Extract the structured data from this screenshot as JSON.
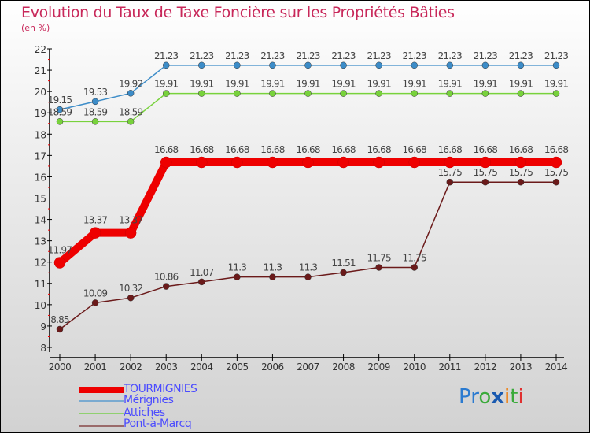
{
  "chart_data": {
    "type": "line",
    "title": "Evolution du Taux de Taxe Foncière sur les Propriétés Bâties",
    "ylabel": "(en %)",
    "x": [
      2000,
      2001,
      2002,
      2003,
      2004,
      2005,
      2006,
      2007,
      2008,
      2009,
      2010,
      2011,
      2012,
      2013,
      2014
    ],
    "ylim": [
      8,
      22
    ],
    "yticks": [
      8,
      9,
      10,
      11,
      12,
      13,
      14,
      15,
      16,
      17,
      18,
      19,
      20,
      21,
      22
    ],
    "series": [
      {
        "name": "Mérignies",
        "color": "#3c8cc8",
        "values": [
          19.15,
          19.53,
          19.92,
          21.23,
          21.23,
          21.23,
          21.23,
          21.23,
          21.23,
          21.23,
          21.23,
          21.23,
          21.23,
          21.23,
          21.23
        ]
      },
      {
        "name": "Attiches",
        "color": "#78d23c",
        "values": [
          18.59,
          18.59,
          18.59,
          19.91,
          19.91,
          19.91,
          19.91,
          19.91,
          19.91,
          19.91,
          19.91,
          19.91,
          19.91,
          19.91,
          19.91
        ]
      },
      {
        "name": "TOURMIGNIES",
        "color": "#ee0000",
        "values": [
          11.97,
          13.37,
          13.37,
          16.68,
          16.68,
          16.68,
          16.68,
          16.68,
          16.68,
          16.68,
          16.68,
          16.68,
          16.68,
          16.68,
          16.68
        ]
      },
      {
        "name": "Pont-à-Marcq",
        "color": "#6b1a1a",
        "values": [
          8.85,
          10.09,
          10.32,
          10.86,
          11.07,
          11.3,
          11.3,
          11.3,
          11.51,
          11.75,
          11.75,
          15.75,
          15.75,
          15.75,
          15.75
        ]
      }
    ],
    "legend": [
      "TOURMIGNIES",
      "Mérignies",
      "Attiches",
      "Pont-à-Marcq"
    ],
    "legend_colors": [
      "#ee0000",
      "#7aaad0",
      "#90d070",
      "#9a6a6a"
    ]
  },
  "logo": "Proxiti"
}
